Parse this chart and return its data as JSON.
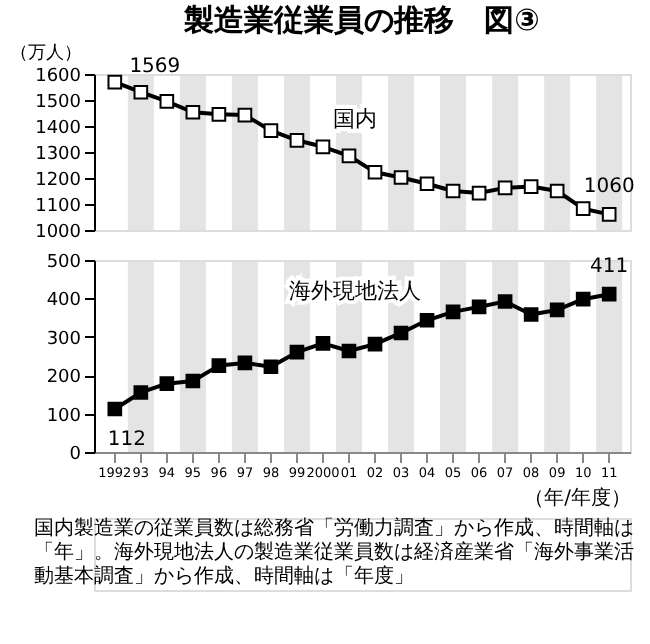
{
  "chart_data": [
    {
      "type": "line",
      "title": "製造業従業員の推移　図③",
      "ylabel": "（万人）",
      "categories": [
        "1992",
        "93",
        "94",
        "95",
        "96",
        "97",
        "98",
        "99",
        "2000",
        "01",
        "02",
        "03",
        "04",
        "05",
        "06",
        "07",
        "08",
        "09",
        "10",
        "11"
      ],
      "series": [
        {
          "name": "国内",
          "color": "#000000",
          "values": [
            1569,
            1530,
            1495,
            1453,
            1445,
            1442,
            1382,
            1345,
            1320,
            1285,
            1222,
            1202,
            1178,
            1150,
            1142,
            1162,
            1167,
            1150,
            1082,
            1060
          ]
        }
      ],
      "ylim": [
        1000,
        1600
      ],
      "yticks": [
        1000,
        1100,
        1200,
        1300,
        1400,
        1500,
        1600
      ],
      "marker": "square",
      "grid": false,
      "legend": false,
      "tick_labels": "y",
      "annotations": [
        {
          "text": "1569",
          "x": "1992",
          "y": 1569
        },
        {
          "text": "1060",
          "x": "11",
          "y": 1060
        }
      ]
    },
    {
      "type": "line",
      "xlabel": "（年/年度）",
      "categories": [
        "1992",
        "93",
        "94",
        "95",
        "96",
        "97",
        "98",
        "99",
        "2000",
        "01",
        "02",
        "03",
        "04",
        "05",
        "06",
        "07",
        "08",
        "09",
        "10",
        "11"
      ],
      "series": [
        {
          "name": "海外現地法人",
          "color": "#000000",
          "values": [
            112,
            155,
            178,
            185,
            225,
            232,
            222,
            260,
            283,
            263,
            281,
            310,
            343,
            365,
            378,
            392,
            358,
            370,
            398,
            411
          ]
        }
      ],
      "ylim": [
        0,
        500
      ],
      "yticks": [
        0,
        100,
        200,
        300,
        400,
        500
      ],
      "marker": "square",
      "grid": false,
      "legend": false,
      "annotations": [
        {
          "text": "112",
          "x": "1992",
          "y": 112
        },
        {
          "text": "411",
          "x": "11",
          "y": 411
        },
        "国内製造業の従業員数は総務省「労働力調査」から作成、時間軸は「年」。海外現地法人の製造業従業員数は経済産業省「海外事業活動基本調査」から作成、時間軸は「年度」"
      ]
    }
  ]
}
